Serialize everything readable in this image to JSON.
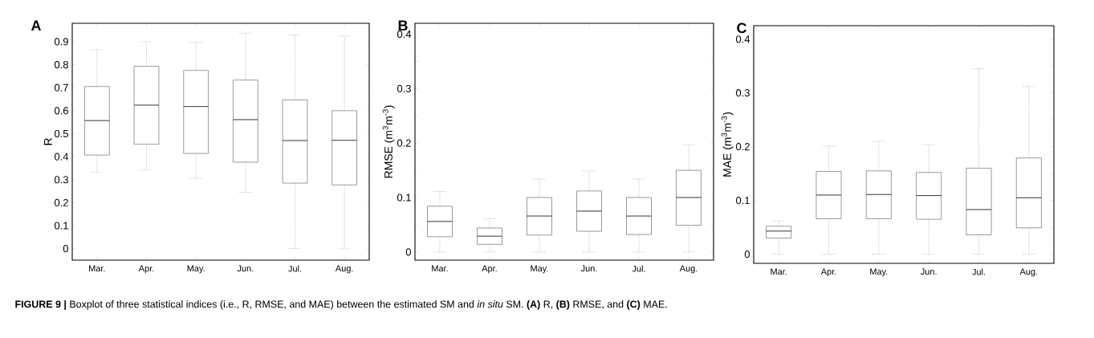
{
  "chart_data": [
    {
      "type": "box",
      "title": "A",
      "ylabel": "R",
      "categories": [
        "Mar.",
        "Apr.",
        "May.",
        "Jun.",
        "Jul.",
        "Aug."
      ],
      "boxes": [
        {
          "low": 0.332,
          "q1": 0.407,
          "median": 0.557,
          "q3": 0.705,
          "high": 0.865
        },
        {
          "low": 0.342,
          "q1": 0.454,
          "median": 0.624,
          "q3": 0.793,
          "high": 0.9
        },
        {
          "low": 0.305,
          "q1": 0.414,
          "median": 0.618,
          "q3": 0.775,
          "high": 0.897
        },
        {
          "low": 0.245,
          "q1": 0.376,
          "median": 0.561,
          "q3": 0.733,
          "high": 0.937
        },
        {
          "low": 0.0,
          "q1": 0.285,
          "median": 0.47,
          "q3": 0.647,
          "high": 0.929
        },
        {
          "low": 0.0,
          "q1": 0.277,
          "median": 0.471,
          "q3": 0.6,
          "high": 0.925
        }
      ],
      "ylim": [
        -0.05,
        0.98
      ],
      "yticks": [
        0,
        0.1,
        0.2,
        0.3,
        0.4,
        0.5,
        0.6,
        0.7,
        0.8,
        0.9
      ],
      "annotations": [
        "**FIGURE 9 |** Boxplot of three statistical indices (i.e., R, RMSE, and MAE) between the estimated SM and *in situ* SM. **(A)** R, **(B)** RMSE, and **(C)** MAE."
      ]
    },
    {
      "type": "box",
      "title": "B",
      "ylabel": "RMSE (m$^{3}$m$^{-3}$)",
      "categories": [
        "Mar.",
        "Apr.",
        "May.",
        "Jun.",
        "Jul.",
        "Aug."
      ],
      "boxes": [
        {
          "low": 0.0,
          "q1": 0.028,
          "median": 0.056,
          "q3": 0.084,
          "high": 0.111
        },
        {
          "low": 0.0,
          "q1": 0.014,
          "median": 0.029,
          "q3": 0.044,
          "high": 0.061
        },
        {
          "low": 0.0,
          "q1": 0.031,
          "median": 0.066,
          "q3": 0.1,
          "high": 0.134
        },
        {
          "low": 0.0,
          "q1": 0.038,
          "median": 0.075,
          "q3": 0.112,
          "high": 0.149
        },
        {
          "low": 0.0,
          "q1": 0.032,
          "median": 0.066,
          "q3": 0.1,
          "high": 0.134
        },
        {
          "low": 0.0,
          "q1": 0.049,
          "median": 0.1,
          "q3": 0.15,
          "high": 0.197
        }
      ],
      "ylim": [
        -0.015,
        0.42
      ],
      "yticks": [
        0,
        {
          "value": 0.05,
          "label": null
        },
        0.1,
        {
          "value": 0.15,
          "label": null
        },
        0.2,
        {
          "value": 0.25,
          "label": null
        },
        0.3,
        {
          "value": 0.35,
          "label": null
        },
        0.4
      ]
    },
    {
      "type": "box",
      "title": "C",
      "ylabel": "MAE (m$^{3}$m$^{-3}$)",
      "categories": [
        "Mar.",
        "Apr.",
        "May.",
        "Jun.",
        "Jul.",
        "Aug."
      ],
      "boxes": [
        {
          "low": 0.0,
          "q1": 0.03,
          "median": 0.043,
          "q3": 0.052,
          "high": 0.062
        },
        {
          "low": 0.0,
          "q1": 0.066,
          "median": 0.11,
          "q3": 0.154,
          "high": 0.201
        },
        {
          "low": 0.0,
          "q1": 0.066,
          "median": 0.111,
          "q3": 0.155,
          "high": 0.21
        },
        {
          "low": 0.0,
          "q1": 0.065,
          "median": 0.109,
          "q3": 0.152,
          "high": 0.204
        },
        {
          "low": 0.0,
          "q1": 0.036,
          "median": 0.083,
          "q3": 0.16,
          "high": 0.345
        },
        {
          "low": 0.0,
          "q1": 0.049,
          "median": 0.105,
          "q3": 0.179,
          "high": 0.312
        }
      ],
      "ylim": [
        -0.017,
        0.425
      ],
      "yticks": [
        0,
        {
          "value": 0.05,
          "label": null
        },
        0.1,
        {
          "value": 0.15,
          "label": null
        },
        0.2,
        {
          "value": 0.25,
          "label": null
        },
        0.3,
        {
          "value": 0.35,
          "label": null
        },
        0.4
      ]
    }
  ]
}
